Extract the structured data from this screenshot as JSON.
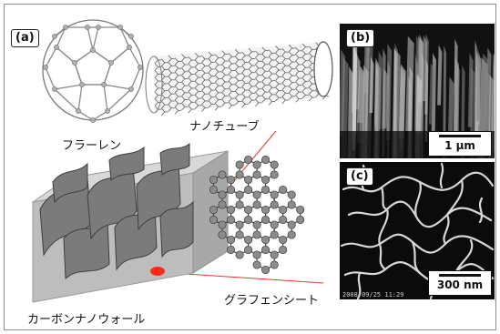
{
  "panels": {
    "a": {
      "tag": "(a)"
    },
    "b": {
      "tag": "(b)",
      "scale": "1 μm"
    },
    "c": {
      "tag": "(c)",
      "scale": "300 nm",
      "timestamp": "2008/09/25 11:29"
    }
  },
  "labels": {
    "fullerene": "フラーレン",
    "nanotube": "ナノチューブ",
    "nanowall": "カーボンナノウォール",
    "graphene": "グラフェンシート"
  },
  "colors": {
    "highlight": "#ff2a1a",
    "link_line": "#e23a2a",
    "block": "#c8c8c8"
  }
}
